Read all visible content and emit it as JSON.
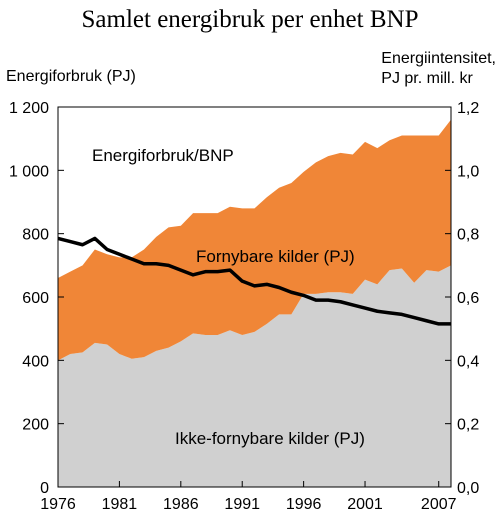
{
  "chart_data": {
    "type": "area",
    "title": "Samlet energibruk per enhet BNP",
    "ylabel_left": "Energiforbruk (PJ)",
    "ylabel_right_line1": "Energiintensitet,",
    "ylabel_right_line2": "PJ pr. mill. kr",
    "x": [
      1976,
      1977,
      1978,
      1979,
      1980,
      1981,
      1982,
      1983,
      1984,
      1985,
      1986,
      1987,
      1988,
      1989,
      1990,
      1991,
      1992,
      1993,
      1994,
      1995,
      1996,
      1997,
      1998,
      1999,
      2000,
      2001,
      2002,
      2003,
      2004,
      2005,
      2006,
      2007,
      2008
    ],
    "x_ticks": [
      "1976",
      "1981",
      "1986",
      "1991",
      "1996",
      "2001",
      "2007"
    ],
    "x_tick_values": [
      1976,
      1981,
      1986,
      1991,
      1996,
      2001,
      2007
    ],
    "xlim": [
      1976,
      2008
    ],
    "ylim_left": [
      0,
      1200
    ],
    "y_ticks_left": [
      "0",
      "200",
      "400",
      "600",
      "800",
      "1 000",
      "1 200"
    ],
    "ylim_right": [
      0,
      1.2
    ],
    "y_ticks_right": [
      "0,0",
      "0,2",
      "0,4",
      "0,6",
      "0,8",
      "1,0",
      "1,2"
    ],
    "series": [
      {
        "name": "Ikke-fornybare kilder (PJ)",
        "axis": "left",
        "kind": "stacked-area",
        "color": "#d0d0d0",
        "values": [
          400,
          420,
          425,
          455,
          450,
          420,
          405,
          410,
          430,
          440,
          460,
          485,
          480,
          480,
          495,
          480,
          490,
          515,
          545,
          545,
          610,
          610,
          615,
          615,
          610,
          655,
          640,
          685,
          690,
          645,
          685,
          680,
          700
        ]
      },
      {
        "name": "Fornybare kilder (PJ)",
        "axis": "left",
        "kind": "stacked-area",
        "color": "#f08637",
        "values": [
          260,
          260,
          275,
          295,
          285,
          305,
          320,
          340,
          360,
          380,
          365,
          380,
          385,
          385,
          390,
          400,
          390,
          400,
          400,
          415,
          385,
          415,
          430,
          440,
          440,
          435,
          430,
          410,
          420,
          465,
          425,
          430,
          460
        ]
      },
      {
        "name": "Energiforbruk/BNP",
        "axis": "right",
        "kind": "line",
        "color": "#000000",
        "values": [
          0.785,
          0.775,
          0.765,
          0.785,
          0.75,
          0.735,
          0.72,
          0.705,
          0.705,
          0.7,
          0.685,
          0.67,
          0.68,
          0.68,
          0.685,
          0.65,
          0.635,
          0.64,
          0.63,
          0.615,
          0.605,
          0.59,
          0.59,
          0.585,
          0.575,
          0.565,
          0.555,
          0.55,
          0.545,
          0.535,
          0.525,
          0.515,
          0.515
        ]
      }
    ],
    "annotations": {
      "ratio": "Energiforbruk/BNP",
      "renewable": "Fornybare kilder (PJ)",
      "nonrenewable": "Ikke-fornybare kilder (PJ)"
    },
    "grid": false,
    "legend": "none"
  }
}
